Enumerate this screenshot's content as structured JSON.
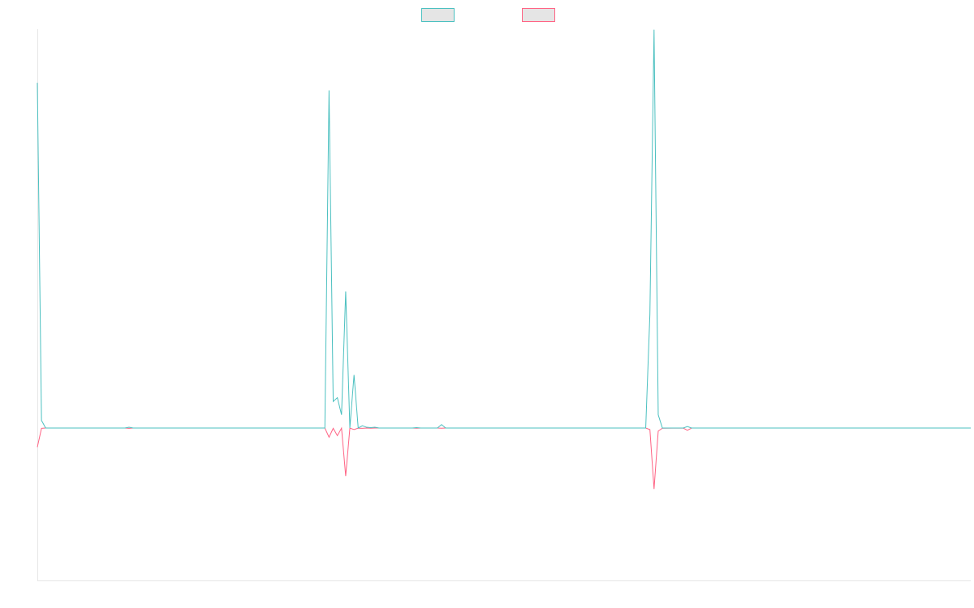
{
  "chart_data": {
    "type": "line",
    "title": "",
    "xlabel": "",
    "ylabel": "",
    "grid": false,
    "legend_position": "top-center",
    "x_count": 225,
    "ylim": [
      -1.0,
      1.0
    ],
    "series": [
      {
        "name": "",
        "color": "#4bc0c0",
        "values": [
          [
            0,
            0.91
          ],
          [
            1,
            0.02
          ],
          [
            2,
            0
          ],
          [
            21,
            0
          ],
          [
            22,
            0.002
          ],
          [
            23,
            0
          ],
          [
            69,
            0
          ],
          [
            70,
            0.89
          ],
          [
            71,
            0.07
          ],
          [
            72,
            0.08
          ],
          [
            73,
            0.035
          ],
          [
            74,
            0.36
          ],
          [
            75,
            0
          ],
          [
            76,
            0.14
          ],
          [
            77,
            0
          ],
          [
            78,
            0.006
          ],
          [
            79,
            0.002
          ],
          [
            80,
            0.001
          ],
          [
            81,
            0.002
          ],
          [
            82,
            0
          ],
          [
            90,
            0
          ],
          [
            91,
            0.001
          ],
          [
            92,
            0
          ],
          [
            96,
            0
          ],
          [
            97,
            0.009
          ],
          [
            98,
            0
          ],
          [
            146,
            0
          ],
          [
            147,
            0.3
          ],
          [
            148,
            1.05
          ],
          [
            149,
            0.035
          ],
          [
            150,
            0
          ],
          [
            155,
            0
          ],
          [
            156,
            0.004
          ],
          [
            157,
            0
          ],
          [
            224,
            0
          ]
        ]
      },
      {
        "name": "",
        "color": "#ff6384",
        "values": [
          [
            0,
            -0.125
          ],
          [
            1,
            -0.002
          ],
          [
            2,
            0
          ],
          [
            21,
            0
          ],
          [
            22,
            -0.002
          ],
          [
            23,
            0
          ],
          [
            69,
            0
          ],
          [
            70,
            -0.06
          ],
          [
            71,
            -0.002
          ],
          [
            72,
            -0.05
          ],
          [
            73,
            -0.001
          ],
          [
            74,
            -0.315
          ],
          [
            75,
            -0.001
          ],
          [
            76,
            -0.01
          ],
          [
            77,
            -0.001
          ],
          [
            78,
            -0.002
          ],
          [
            79,
            0
          ],
          [
            80,
            -0.001
          ],
          [
            81,
            0
          ],
          [
            90,
            0
          ],
          [
            91,
            -0.001
          ],
          [
            92,
            0
          ],
          [
            96,
            0
          ],
          [
            97,
            -0.001
          ],
          [
            98,
            0
          ],
          [
            146,
            0
          ],
          [
            147,
            -0.01
          ],
          [
            148,
            -0.4
          ],
          [
            149,
            -0.02
          ],
          [
            150,
            -0.001
          ],
          [
            155,
            0
          ],
          [
            156,
            -0.015
          ],
          [
            157,
            0
          ],
          [
            224,
            0
          ]
        ]
      }
    ]
  }
}
